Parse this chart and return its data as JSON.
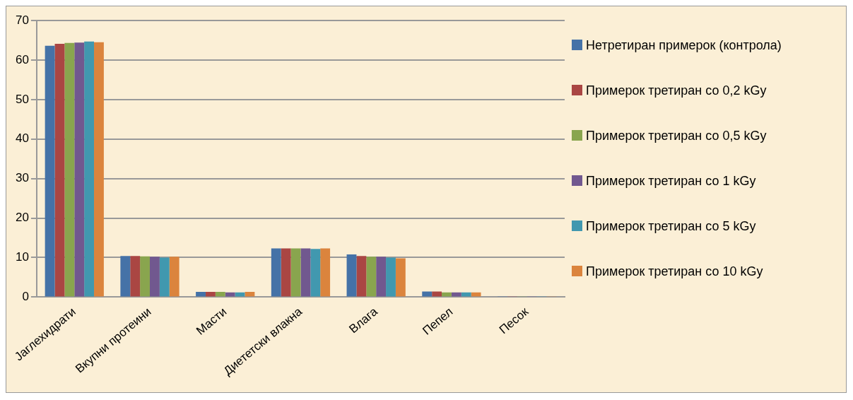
{
  "chart_data": {
    "type": "bar",
    "categories": [
      "Јаглехидрати",
      "Вкупни протеини",
      "Масти",
      "Диететски влакна",
      "Влага",
      "Пепел",
      "Песок"
    ],
    "series": [
      {
        "name": "Нетретиран примерок (контрола)",
        "color": "#4572a7",
        "values": [
          63.6,
          10.4,
          1.3,
          12.3,
          10.8,
          1.4,
          0.1
        ]
      },
      {
        "name": "Примерок третиран со 0,2 kGy",
        "color": "#aa4643",
        "values": [
          64.1,
          10.4,
          1.3,
          12.3,
          10.4,
          1.4,
          0.1
        ]
      },
      {
        "name": "Примерок третиран со 0,5 kGy",
        "color": "#89a54e",
        "values": [
          64.3,
          10.3,
          1.3,
          12.3,
          10.2,
          1.2,
          0.1
        ]
      },
      {
        "name": "Примерок третиран со 1 kGy",
        "color": "#71588f",
        "values": [
          64.4,
          10.2,
          1.2,
          12.3,
          10.2,
          1.2,
          0.1
        ]
      },
      {
        "name": "Примерок третиран со 5 kGy",
        "color": "#4198af",
        "values": [
          64.7,
          10.0,
          1.2,
          12.2,
          10.0,
          1.2,
          0.1
        ]
      },
      {
        "name": "Примерок третиран со 10 kGy",
        "color": "#db843d",
        "values": [
          64.5,
          10.2,
          1.3,
          12.3,
          9.8,
          1.2,
          0.1
        ]
      }
    ],
    "ylim": [
      0,
      70
    ],
    "yticks": [
      0,
      10,
      20,
      30,
      40,
      50,
      60,
      70
    ],
    "grid": "y",
    "legend": "right"
  }
}
